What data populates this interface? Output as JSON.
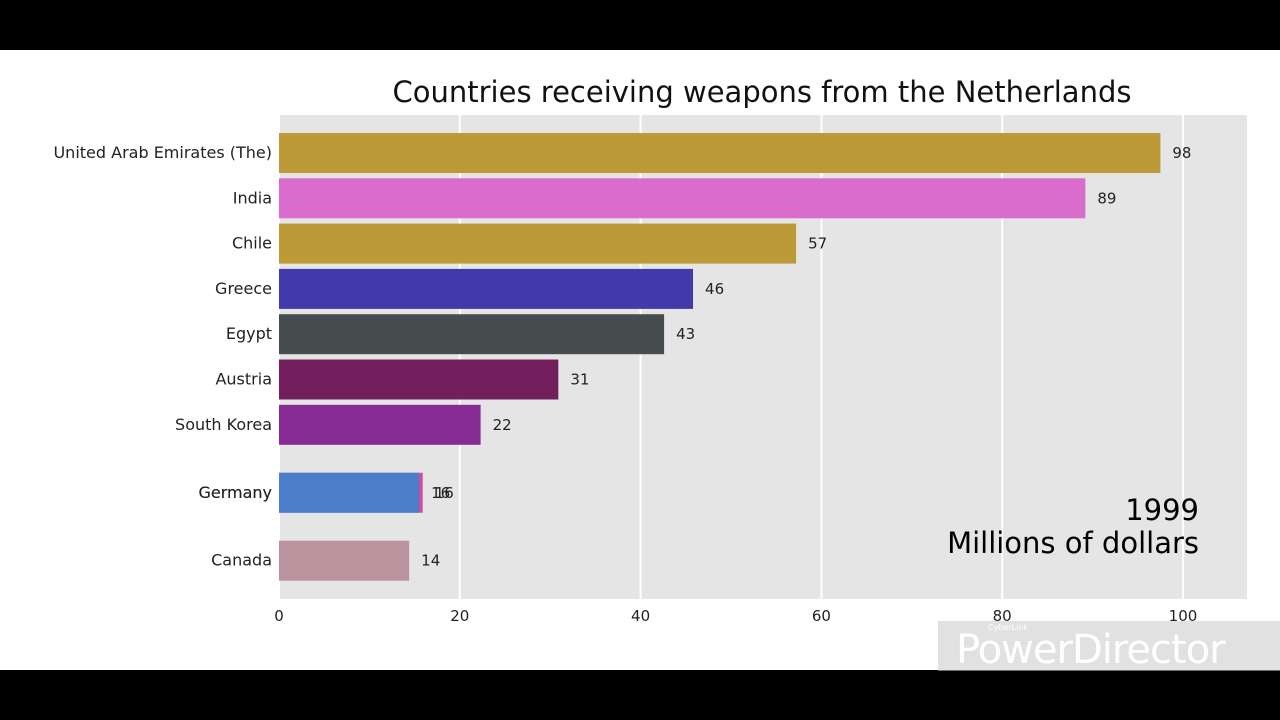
{
  "watermark": {
    "brand": "PowerDirector",
    "small": "CyberLink"
  },
  "chart_data": {
    "type": "bar",
    "orientation": "horizontal",
    "title": "Countries receiving weapons from the Netherlands",
    "year_label": "1999",
    "unit_label": "Millions of dollars",
    "xlim": [
      0,
      107
    ],
    "xticks": [
      0,
      20,
      40,
      60,
      80,
      100
    ],
    "grid": true,
    "bars": [
      {
        "name": "United Arab Emirates (The)",
        "value": 97.5,
        "label": "98",
        "rank": 0,
        "color": "#bc9a37"
      },
      {
        "name": "India",
        "value": 89.2,
        "label": "89",
        "rank": 1,
        "color": "#d96ccd"
      },
      {
        "name": "Chile",
        "value": 57.2,
        "label": "57",
        "rank": 2,
        "color": "#bc9a37"
      },
      {
        "name": "Greece",
        "value": 45.8,
        "label": "46",
        "rank": 3,
        "color": "#4239ad"
      },
      {
        "name": "Egypt",
        "value": 42.6,
        "label": "43",
        "rank": 4,
        "color": "#474d4e"
      },
      {
        "name": "Austria",
        "value": 30.9,
        "label": "31",
        "rank": 5,
        "color": "#731f5e"
      },
      {
        "name": "South Korea",
        "value": 22.3,
        "label": "22",
        "rank": 6,
        "color": "#862a94"
      },
      {
        "name": "Germany",
        "value": 15.9,
        "label": "16",
        "rank": 7.5,
        "color": "#d04e9e"
      },
      {
        "name": "Germany",
        "value": 15.5,
        "label": "16",
        "rank": 7.5,
        "color": "#4c7fca"
      },
      {
        "name": "Canada",
        "value": 14.4,
        "label": "14",
        "rank": 9,
        "color": "#bb939f"
      }
    ]
  }
}
